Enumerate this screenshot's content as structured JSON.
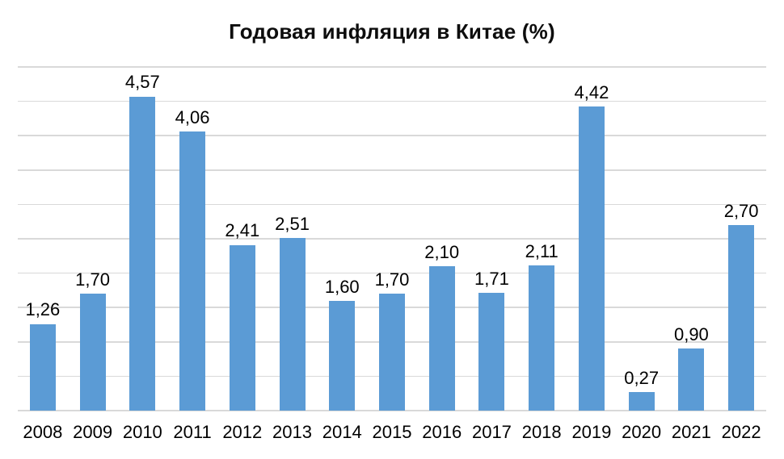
{
  "title": "Годовая инфляция в Китае (%)",
  "chart_data": {
    "type": "bar",
    "title": "Годовая инфляция в Китае (%)",
    "categories": [
      "2008",
      "2009",
      "2010",
      "2011",
      "2012",
      "2013",
      "2014",
      "2015",
      "2016",
      "2017",
      "2018",
      "2019",
      "2020",
      "2021",
      "2022"
    ],
    "values": [
      1.26,
      1.7,
      4.57,
      4.06,
      2.41,
      2.51,
      1.6,
      1.7,
      2.1,
      1.71,
      2.11,
      4.42,
      0.27,
      0.9,
      2.7
    ],
    "value_labels": [
      "1,26",
      "1,70",
      "4,57",
      "4,06",
      "2,41",
      "2,51",
      "1,60",
      "1,70",
      "2,10",
      "1,71",
      "2,11",
      "4,42",
      "0,27",
      "0,90",
      "2,70"
    ],
    "xlabel": "",
    "ylabel": "",
    "ylim": [
      0,
      5
    ],
    "grid_step": 0.5,
    "grid": true,
    "legend": "none",
    "bar_color": "#5b9bd5",
    "gridline_color": "#d9d9d9",
    "text_color": "#000000",
    "background_color": "#ffffff"
  }
}
